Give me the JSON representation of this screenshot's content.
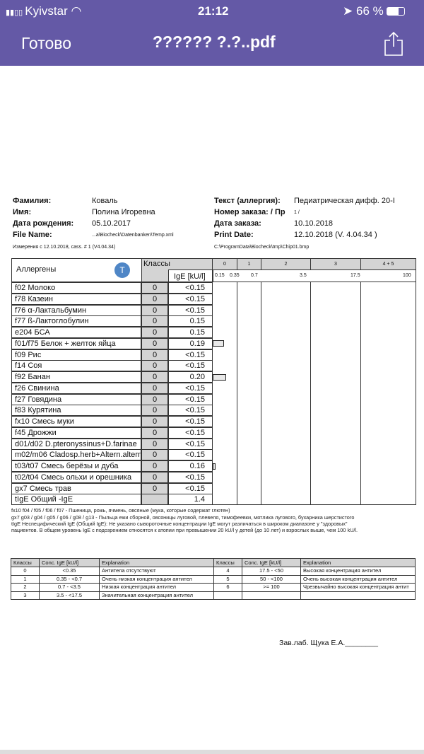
{
  "status": {
    "carrier": "Kyivstar",
    "time": "21:12",
    "battery": "66 %"
  },
  "nav": {
    "done": "Готово",
    "title": "?????? ?.?..pdf"
  },
  "patient": {
    "surname_label": "Фамилия:",
    "surname": "Коваль",
    "name_label": "Имя:",
    "name": "Полина Игоревна",
    "dob_label": "Дата рождения:",
    "dob": "05.10.2017",
    "file_label": "File Name:",
    "file": "...a\\Biocheck\\Datenbanken\\Temp.xml",
    "measure": "Измерения с 12.10.2018, cass. # 1 (V4.04.34)",
    "test_label": "Текст (аллергия):",
    "test": "Педиатрическая дифф. 20-I",
    "order_label": "Номер заказа: / Пр",
    "order": "1 /",
    "order_date_label": "Дата заказа:",
    "order_date": "10.10.2018",
    "print_label": "Print Date:",
    "print_date": "12.10.2018 (V. 4.04.34 )",
    "chip": "C:\\ProgramData\\Biocheck\\tmp\\Chip01.bmp"
  },
  "table": {
    "allergens_header": "Аллергены",
    "classes_header": "Классы",
    "ige_header": "IgE [kU/l]",
    "class_cols": [
      "0",
      "1",
      "2",
      "3",
      "4 + 5"
    ],
    "scale": [
      "0.15",
      "0.35",
      "0.7",
      "3.5",
      "17.5",
      "100"
    ],
    "rows": [
      {
        "name": "f02  Молоко",
        "cls": "0",
        "val": "<0.15"
      },
      {
        "name": "f78  Казеин",
        "cls": "0",
        "val": "<0.15"
      },
      {
        "name": "f76  α-Лактальбумин",
        "cls": "0",
        "val": "<0.15"
      },
      {
        "name": "f77  ß-Лактоглобулин",
        "cls": "0",
        "val": "0.15"
      },
      {
        "name": "e204  БСА",
        "cls": "0",
        "val": "0.15"
      },
      {
        "name": "f01/f75  Белок + желток яйца",
        "cls": "0",
        "val": "0.19"
      },
      {
        "name": "f09  Рис",
        "cls": "0",
        "val": "<0.15"
      },
      {
        "name": "f14  Соя",
        "cls": "0",
        "val": "<0.15"
      },
      {
        "name": "f92  Банан",
        "cls": "0",
        "val": "0.20"
      },
      {
        "name": "f26  Свинина",
        "cls": "0",
        "val": "<0.15"
      },
      {
        "name": "f27  Говядина",
        "cls": "0",
        "val": "<0.15"
      },
      {
        "name": "f83  Курятина",
        "cls": "0",
        "val": "<0.15"
      },
      {
        "name": "fx10  Смесь муки",
        "cls": "0",
        "val": "<0.15"
      },
      {
        "name": "f45  Дрожжи",
        "cls": "0",
        "val": "<0.15"
      },
      {
        "name": "d01/d02  D.pteronyssinus+D.farinae",
        "cls": "0",
        "val": "<0.15"
      },
      {
        "name": "m02/m06  Cladosp.herb+Altern.alternata",
        "cls": "0",
        "val": "<0.15"
      },
      {
        "name": "t03/t07  Смесь берёзы и дуба",
        "cls": "0",
        "val": "0.16"
      },
      {
        "name": "t02/t04  Смесь ольхи и орешника",
        "cls": "0",
        "val": "<0.15"
      },
      {
        "name": "gx7  Смесь трав",
        "cls": "0",
        "val": "<0.15"
      },
      {
        "name": "tIgE  Общий -IgE",
        "cls": "",
        "val": "1.4"
      }
    ]
  },
  "notes": [
    "fx10  f04 / f05 / f06 / f07 - Пшеница, рожь, ячмень, овсяные (мука, которые содержат глютен)",
    "gx7  g03 / g04 / g05 / g06 / g08 / g13 - Пыльца ежи сборной, овсяницы луговой, плевеля, тимофеевки, мятлика лугового, бухарника шерстистого",
    "tIgE  Неспецифический IgE (Общий IgE): Не указано сывороточные концентрации IgE могут различаться в широком диапазоне у \"здоровых\"",
    "пациентов. В общем уровень IgE с подозрением относятся к атопии при превышении 20 kU/l у детей (до 10 лет) и взрослых выше, чем  100 kU/l."
  ],
  "legend": {
    "headers": [
      "Классы",
      "Conc. IgE [kU/l]",
      "Explanation",
      "Классы",
      "Conc. IgE [kU/l]",
      "Explanation"
    ],
    "rows": [
      [
        "0",
        "<0.35",
        "Антитела отсутствуют",
        "4",
        "17.5 - <50",
        "Высокая концентрация антител"
      ],
      [
        "1",
        "0.35 - <0.7",
        "Очень низкая концентрация антител",
        "5",
        "50 - <100",
        "Очень высокая концентрация антител"
      ],
      [
        "2",
        "0.7 - <3.5",
        "Низкая концентрация антител",
        "6",
        ">= 100",
        "Чрезвычайно высокая концентрация антит"
      ],
      [
        "3",
        "3.5 - <17.5",
        "Значительная концентрация антител",
        "",
        "",
        ""
      ]
    ]
  },
  "signature": "Зав.лаб. Щука Е.А.________",
  "colors": {
    "nav": "#6459a6",
    "class_col": "#d4d4d4",
    "icon": "#4f86c6"
  }
}
